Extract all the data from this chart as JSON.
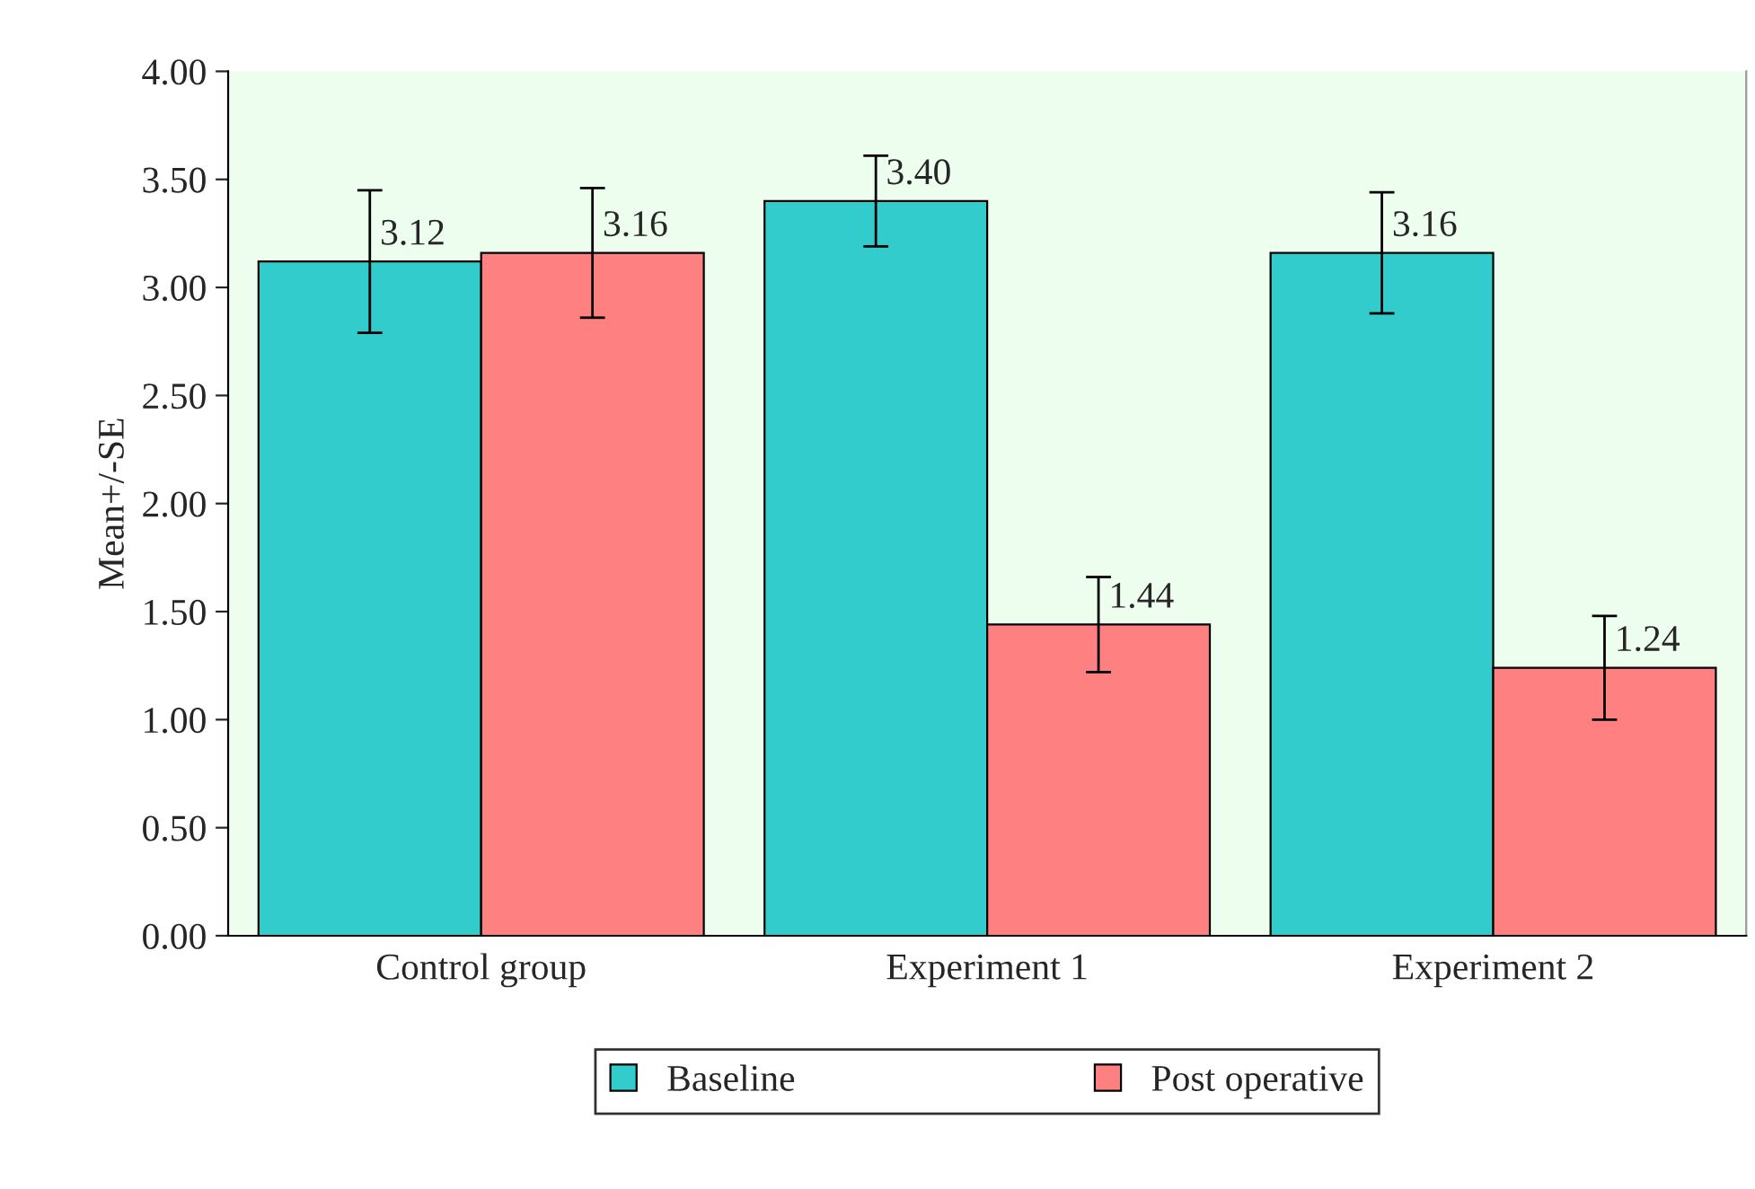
{
  "chart_data": {
    "type": "bar",
    "ylabel": "Mean+/-SE",
    "categories": [
      "Control group",
      "Experiment 1",
      "Experiment 2"
    ],
    "series": [
      {
        "name": "Baseline",
        "color": "#33cccc",
        "values": [
          3.12,
          3.4,
          3.16
        ],
        "value_labels": [
          "3.12",
          "3.40",
          "3.16"
        ],
        "errors": [
          0.33,
          0.21,
          0.28
        ]
      },
      {
        "name": "Post operative",
        "color": "#ff8080",
        "values": [
          3.16,
          1.44,
          1.24
        ],
        "value_labels": [
          "3.16",
          "1.44",
          "1.24"
        ],
        "errors": [
          0.3,
          0.22,
          0.24
        ]
      }
    ],
    "ylim": [
      0,
      4
    ],
    "yticks": [
      {
        "value": 0,
        "label": "0.00"
      },
      {
        "value": 0.5,
        "label": "0.50"
      },
      {
        "value": 1,
        "label": "1.00"
      },
      {
        "value": 1.5,
        "label": "1.50"
      },
      {
        "value": 2,
        "label": "2.00"
      },
      {
        "value": 2.5,
        "label": "2.50"
      },
      {
        "value": 3,
        "label": "3.00"
      },
      {
        "value": 3.5,
        "label": "3.50"
      },
      {
        "value": 4,
        "label": "4.00"
      }
    ],
    "grid": false,
    "legend": "bottom"
  }
}
